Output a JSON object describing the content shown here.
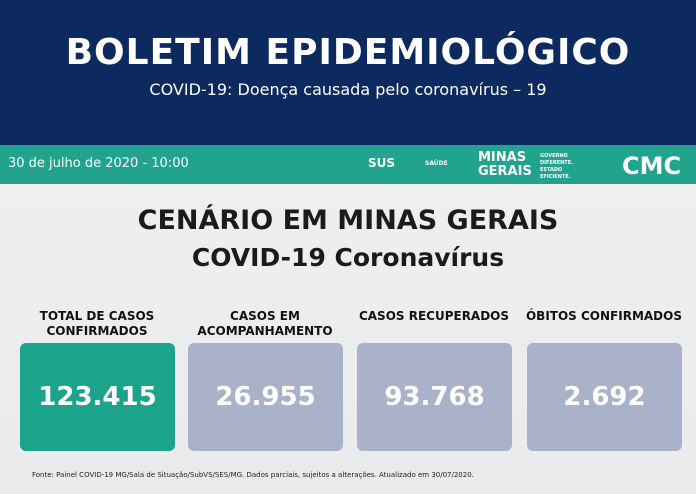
{
  "header": {
    "title": "BOLETIM EPIDEMIOLÓGICO",
    "subtitle": "COVID-19: Doença causada pelo coronavírus – 19"
  },
  "bar": {
    "date": "30 de julho de 2020 - 10:00",
    "logos": {
      "sus": "SUS",
      "saude": "SAÚDE",
      "minas": "MINAS GERAIS",
      "slogan": "GOVERNO DIFERENTE. ESTADO EFICIENTE.",
      "cmc": "CMC"
    }
  },
  "section": {
    "title": "CENÁRIO EM MINAS GERAIS",
    "subtitle": "COVID-19 Coronavírus"
  },
  "cards": [
    {
      "label": "TOTAL DE CASOS CONFIRMADOS",
      "value": "123.415"
    },
    {
      "label": "CASOS EM ACOMPANHAMENTO",
      "value": "26.955"
    },
    {
      "label": "CASOS RECUPERADOS",
      "value": "93.768"
    },
    {
      "label": "ÓBITOS CONFIRMADOS",
      "value": "2.692"
    }
  ],
  "source": "Fonte: Painel COVID-19 MG/Sala de Situação/SubVS/SES/MG. Dados parciais, sujeitos a alterações. Atualizado em 30/07/2020."
}
